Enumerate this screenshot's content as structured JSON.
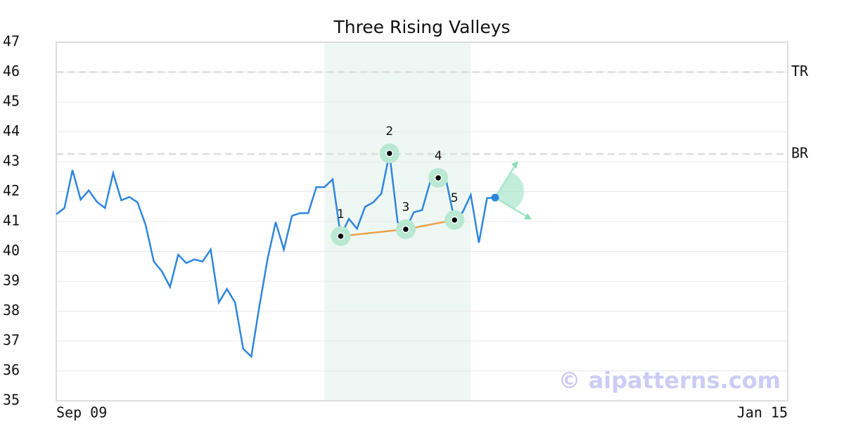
{
  "chart_data": {
    "type": "line",
    "title": "Three Rising Valleys",
    "x": [
      0,
      1,
      2,
      3,
      4,
      5,
      6,
      7,
      8,
      9,
      10,
      11,
      12,
      13,
      14,
      15,
      16,
      17,
      18,
      19,
      20,
      21,
      22,
      23,
      24,
      25,
      26,
      27,
      28,
      29,
      30,
      31,
      32,
      33,
      34,
      35,
      36,
      37,
      38,
      39,
      40,
      41,
      42,
      43,
      44,
      45,
      46,
      47,
      48,
      49,
      50,
      51,
      52,
      53,
      54
    ],
    "series": [
      {
        "color": "#2f86de",
        "values": [
          41.24,
          41.45,
          42.72,
          41.73,
          42.04,
          41.66,
          41.45,
          42.62,
          41.71,
          41.82,
          41.64,
          40.88,
          39.66,
          39.33,
          38.81,
          39.89,
          39.61,
          39.73,
          39.66,
          40.06,
          38.29,
          38.74,
          38.29,
          36.74,
          36.48,
          38.18,
          39.75,
          40.98,
          40.06,
          41.19,
          41.28,
          41.28,
          42.15,
          42.15,
          42.41,
          40.51,
          41.09,
          40.76,
          41.49,
          41.64,
          41.94,
          43.28,
          40.98,
          40.74,
          41.31,
          41.38,
          42.32,
          42.46,
          42.34,
          41.05,
          41.31,
          41.89,
          40.29,
          41.78,
          41.8
        ]
      }
    ],
    "xlim": [
      0,
      90
    ],
    "xticks": [
      {
        "value": 0,
        "label": "Sep 09"
      },
      {
        "value": 90,
        "label": "Jan 15"
      }
    ],
    "ylim": [
      35,
      47
    ],
    "yticks": [
      35,
      36,
      37,
      38,
      39,
      40,
      41,
      42,
      43,
      44,
      45,
      46,
      47
    ],
    "grid": true,
    "highlight": [
      33,
      51
    ],
    "levels": [
      {
        "label": "TR",
        "value": 46
      },
      {
        "label": "BR",
        "value": 43.26
      }
    ],
    "pattern": [
      {
        "label": "1",
        "x": 35,
        "y": 40.51
      },
      {
        "label": "2",
        "x": 41,
        "y": 43.28
      },
      {
        "label": "3",
        "x": 43,
        "y": 40.74
      },
      {
        "label": "4",
        "x": 47,
        "y": 42.46
      },
      {
        "label": "5",
        "x": 49,
        "y": 41.05
      }
    ],
    "trendline_color": "#f0a04b",
    "watermark": "© aipatterns.com"
  }
}
